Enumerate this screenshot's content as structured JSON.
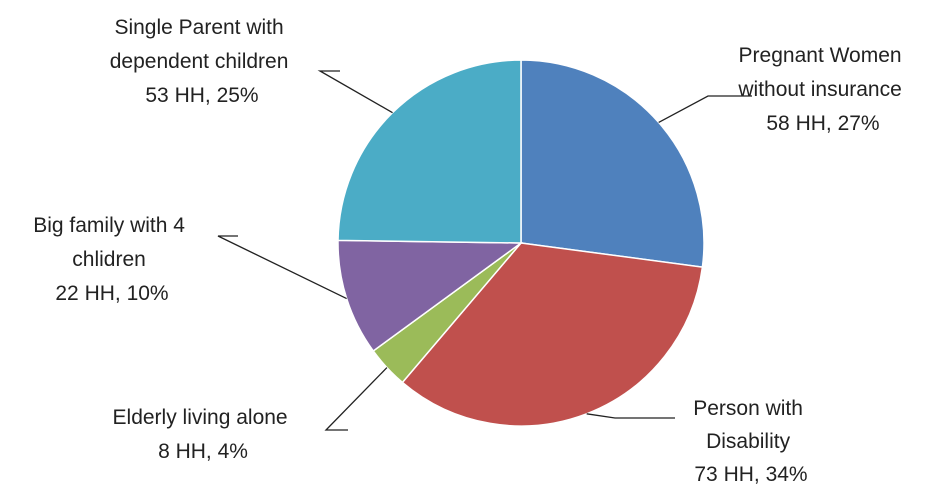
{
  "chart_data": {
    "type": "pie",
    "start_angle_deg": 0,
    "direction": "clockwise",
    "slices": [
      {
        "label_lines": [
          "Pregnant Women",
          "without insurance"
        ],
        "value_text": "58 HH, 27%",
        "households": 58,
        "percent": 27,
        "color": "#4F81BD"
      },
      {
        "label_lines": [
          "Person with",
          "Disability"
        ],
        "value_text": "73 HH, 34%",
        "households": 73,
        "percent": 34,
        "color": "#C0504D"
      },
      {
        "label_lines": [
          "Elderly living alone"
        ],
        "value_text": "8 HH, 4%",
        "households": 8,
        "percent": 4,
        "color": "#9BBB59"
      },
      {
        "label_lines": [
          "Big family with 4",
          "chlidren"
        ],
        "value_text": "22 HH, 10%",
        "households": 22,
        "percent": 10,
        "color": "#8064A2"
      },
      {
        "label_lines": [
          "Single Parent with",
          "dependent children"
        ],
        "value_text": "53 HH, 25%",
        "households": 53,
        "percent": 25,
        "color": "#4BACC6"
      }
    ]
  }
}
